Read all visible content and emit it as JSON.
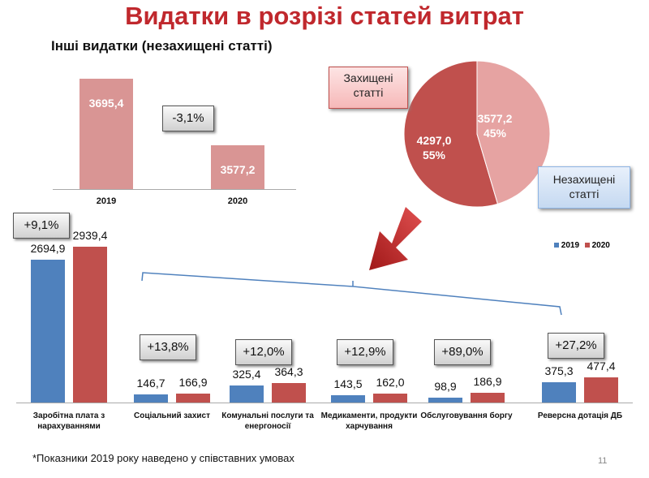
{
  "title": "Видатки в розрізі статей витрат",
  "subtitle": "Інші видатки (незахищені статті)",
  "footnote": "*Показники 2019 року наведено у співставних умовах",
  "page_number": "11",
  "colors": {
    "y2019": "#4f81bd",
    "y2020": "#c0504d",
    "top_bar": "#d99594",
    "pie_protected": "#c0504d",
    "pie_unprotected": "#e6a3a2",
    "title": "#c0282d"
  },
  "chart_data": [
    {
      "type": "bar",
      "title": "Інші видатки (незахищені статті)",
      "categories": [
        "2019",
        "2020"
      ],
      "values": [
        3695.4,
        3577.2
      ],
      "value_labels": [
        "3695,4",
        "3577,2"
      ],
      "ylim": [
        3500,
        3700
      ],
      "annotation": "-3,1%"
    },
    {
      "type": "pie",
      "slices": [
        {
          "label": "Незахищені статті",
          "value": 3577.2,
          "value_label": "3577,2",
          "percent": "45%"
        },
        {
          "label": "Захищені статті",
          "value": 4297.0,
          "value_label": "4297,0",
          "percent": "55%"
        }
      ],
      "callouts": {
        "protected": "Захищені статті",
        "unprotected": "Незахищені статті"
      }
    },
    {
      "type": "bar",
      "legend_position": "top-right",
      "series": [
        {
          "name": "2019",
          "values": [
            2694.9,
            146.7,
            325.4,
            143.5,
            98.9,
            375.3
          ],
          "labels": [
            "2694,9",
            "146,7",
            "325,4",
            "143,5",
            "98,9",
            "375,3"
          ]
        },
        {
          "name": "2020",
          "values": [
            2939.4,
            166.9,
            364.3,
            162.0,
            186.9,
            477.4
          ],
          "labels": [
            "2939,4",
            "166,9",
            "364,3",
            "162,0",
            "186,9",
            "477,4"
          ]
        }
      ],
      "categories": [
        "Заробітна плата з нарахуваннями",
        "Соціальний захист",
        "Комунальні послуги та енергоносії",
        "Медикаменти, продукти харчування",
        "Обслуговування боргу",
        "Реверсна дотація ДБ"
      ],
      "changes": [
        "+9,1%",
        "+13,8%",
        "+12,0%",
        "+12,9%",
        "+89,0%",
        "+27,2%"
      ],
      "ylim": [
        0,
        3000
      ]
    }
  ]
}
